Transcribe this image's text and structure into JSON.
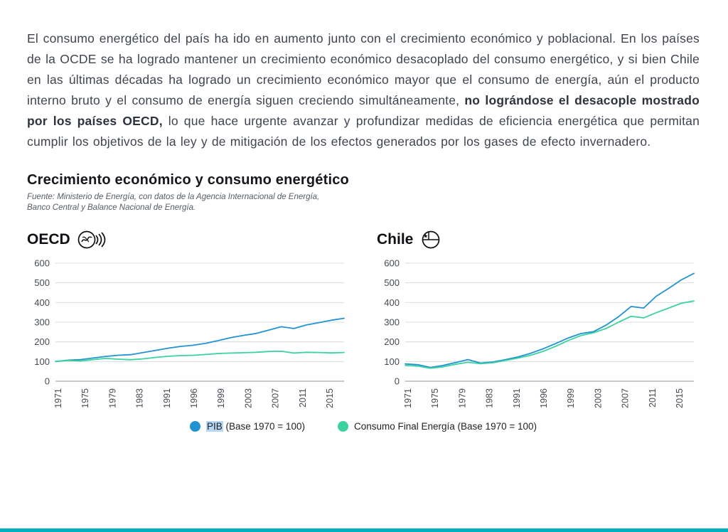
{
  "paragraph": {
    "part1": "El consumo energético del país ha ido en aumento junto con el crecimiento económico y poblacional. En los países de la OCDE se ha logrado mantener un crecimiento económico desacoplado del consumo energético, y si bien Chile en las últimas décadas ha logrado un crecimiento económico mayor que el consumo de energía, aún el producto interno bruto y el consumo de energía siguen creciendo simultáneamente, ",
    "bold": "no lográndose el desacople mostrado por los países OECD,",
    "part2": "  lo que hace urgente avanzar y profundizar medidas de eficiencia energética que permitan cumplir los objetivos de la ley y de mitigación de los efectos generados por los gases de efecto invernadero."
  },
  "section": {
    "title": "Crecimiento económico y consumo energético",
    "source": "Fuente: Ministerio de Energía, con datos de la Agencia Internacional de Energía, Banco Central y Balance Nacional de Energía."
  },
  "legend": {
    "pib_highlight": "PIB",
    "pib_rest": " (Base 1970 = 100)",
    "energia": "Consumo Final Energía (Base 1970 = 100)"
  },
  "colors": {
    "pib": "#2292d2",
    "energia": "#3ad2a0",
    "grid": "#dcdcdc",
    "baseline": "#8f959c",
    "axis_text": "#454a53",
    "bottom_bar": "#00b2bd",
    "selection": "#b9d7f3"
  },
  "chart_data": [
    {
      "type": "line",
      "title": "OECD",
      "ylim": [
        0,
        600
      ],
      "yticks": [
        0,
        100,
        200,
        300,
        400,
        500,
        600
      ],
      "xtick_labels": [
        "1971",
        "1975",
        "1979",
        "1983",
        "1991",
        "1996",
        "1999",
        "2003",
        "2007",
        "2011",
        "2015"
      ],
      "x": [
        1971,
        1973,
        1975,
        1977,
        1979,
        1981,
        1983,
        1985,
        1987,
        1989,
        1991,
        1993,
        1995,
        1997,
        1999,
        2001,
        2003,
        2005,
        2007,
        2009,
        2011,
        2013,
        2015,
        2017
      ],
      "series": [
        {
          "name": "PIB (Base 1970 = 100)",
          "color": "#2292d2",
          "values": [
            100,
            107,
            110,
            118,
            126,
            132,
            135,
            146,
            157,
            168,
            177,
            183,
            193,
            207,
            222,
            233,
            243,
            260,
            277,
            268,
            286,
            298,
            310,
            320
          ]
        },
        {
          "name": "Consumo Final Energía (Base 1970 = 100)",
          "color": "#3ad2a0",
          "values": [
            100,
            105,
            103,
            110,
            116,
            112,
            109,
            114,
            121,
            127,
            130,
            132,
            136,
            141,
            143,
            145,
            147,
            151,
            152,
            143,
            147,
            146,
            144,
            146
          ]
        }
      ]
    },
    {
      "type": "line",
      "title": "Chile",
      "ylim": [
        0,
        600
      ],
      "yticks": [
        0,
        100,
        200,
        300,
        400,
        500,
        600
      ],
      "xtick_labels": [
        "1971",
        "1975",
        "1979",
        "1983",
        "1991",
        "1996",
        "1999",
        "2003",
        "2007",
        "2011",
        "2015"
      ],
      "x": [
        1971,
        1973,
        1975,
        1977,
        1979,
        1981,
        1983,
        1985,
        1987,
        1989,
        1991,
        1993,
        1995,
        1997,
        1999,
        2001,
        2003,
        2005,
        2007,
        2009,
        2011,
        2013,
        2015,
        2017
      ],
      "series": [
        {
          "name": "PIB (Base 1970 = 100)",
          "color": "#2292d2",
          "values": [
            88,
            84,
            70,
            80,
            95,
            110,
            92,
            98,
            110,
            124,
            142,
            165,
            192,
            220,
            242,
            252,
            285,
            328,
            380,
            372,
            432,
            472,
            515,
            548
          ]
        },
        {
          "name": "Consumo Final Energía (Base 1970 = 100)",
          "color": "#3ad2a0",
          "values": [
            80,
            77,
            66,
            73,
            86,
            96,
            89,
            94,
            106,
            118,
            132,
            152,
            178,
            207,
            232,
            246,
            268,
            300,
            330,
            322,
            348,
            372,
            396,
            408
          ]
        }
      ]
    }
  ]
}
